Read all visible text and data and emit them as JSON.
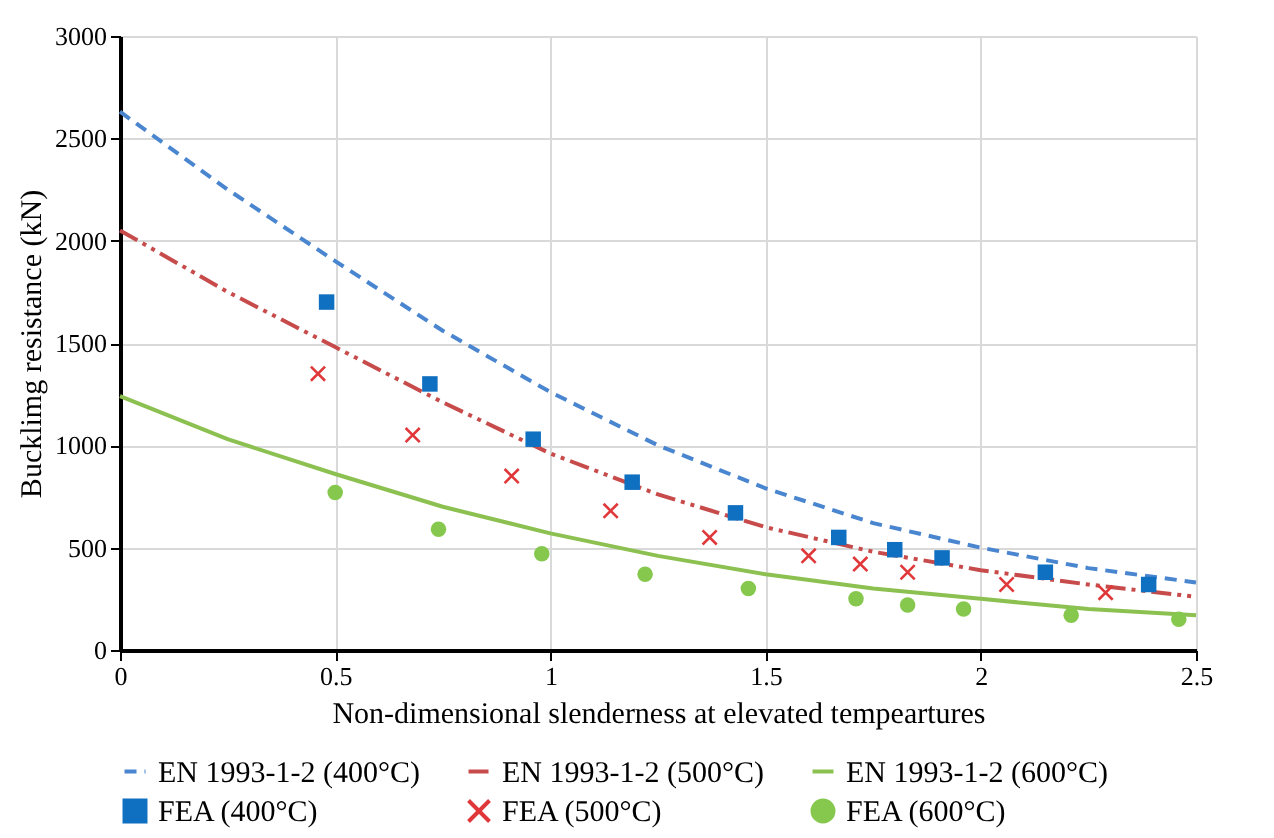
{
  "chart_data": {
    "type": "line",
    "xlabel": "Non-dimensional slenderness at elevated tempeartures",
    "ylabel": "Bucklimg resistance (kN)",
    "xlim": [
      0,
      2.5
    ],
    "xticks": [
      0,
      0.5,
      1,
      1.5,
      2,
      2.5
    ],
    "ylim": [
      0,
      3000
    ],
    "yticks": [
      0,
      500,
      1000,
      1500,
      2000,
      2500,
      3000
    ],
    "grid": true,
    "legend": "bottom",
    "series": [
      {
        "name": "EN 1993-1-2 (400°C)",
        "line_style": "dashed",
        "marker": "none",
        "color": "#4a86cf",
        "x": [
          0,
          0.25,
          0.5,
          0.75,
          1,
          1.25,
          1.5,
          1.75,
          2,
          2.25,
          2.5
        ],
        "values": [
          2630,
          2250,
          1900,
          1560,
          1260,
          1000,
          790,
          620,
          500,
          400,
          330
        ]
      },
      {
        "name": "EN 1993-1-2 (500°C)",
        "line_style": "dashdot",
        "marker": "none",
        "color": "#c84b4b",
        "x": [
          0,
          0.25,
          0.5,
          0.75,
          1,
          1.25,
          1.5,
          1.75,
          2,
          2.25,
          2.5
        ],
        "values": [
          2050,
          1750,
          1480,
          1210,
          960,
          760,
          600,
          480,
          390,
          320,
          260
        ]
      },
      {
        "name": "EN 1993-1-2 (600°C)",
        "line_style": "solid",
        "marker": "none",
        "color": "#8cc152",
        "x": [
          0,
          0.25,
          0.5,
          0.75,
          1,
          1.25,
          1.5,
          1.75,
          2,
          2.25,
          2.5
        ],
        "values": [
          1240,
          1030,
          860,
          700,
          570,
          460,
          370,
          300,
          250,
          200,
          170
        ]
      },
      {
        "name": "FEA (400°C)",
        "type": "scatter",
        "marker": "square",
        "color": "#0f6fc0",
        "x": [
          0.48,
          0.72,
          0.96,
          1.19,
          1.43,
          1.67,
          1.8,
          1.91,
          2.15,
          2.39
        ],
        "values": [
          1700,
          1300,
          1030,
          820,
          670,
          550,
          490,
          450,
          380,
          320
        ]
      },
      {
        "name": "FEA (500°C)",
        "type": "scatter",
        "marker": "cross",
        "color": "#e0383a",
        "x": [
          0.46,
          0.68,
          0.91,
          1.14,
          1.37,
          1.6,
          1.72,
          1.83,
          2.06,
          2.29
        ],
        "values": [
          1350,
          1050,
          850,
          680,
          550,
          460,
          420,
          380,
          320,
          280
        ]
      },
      {
        "name": "FEA (600°C)",
        "type": "scatter",
        "marker": "circle",
        "color": "#86c84e",
        "x": [
          0.5,
          0.74,
          0.98,
          1.22,
          1.46,
          1.71,
          1.83,
          1.96,
          2.21,
          2.46
        ],
        "values": [
          770,
          590,
          470,
          370,
          300,
          250,
          220,
          200,
          170,
          150
        ]
      }
    ]
  }
}
